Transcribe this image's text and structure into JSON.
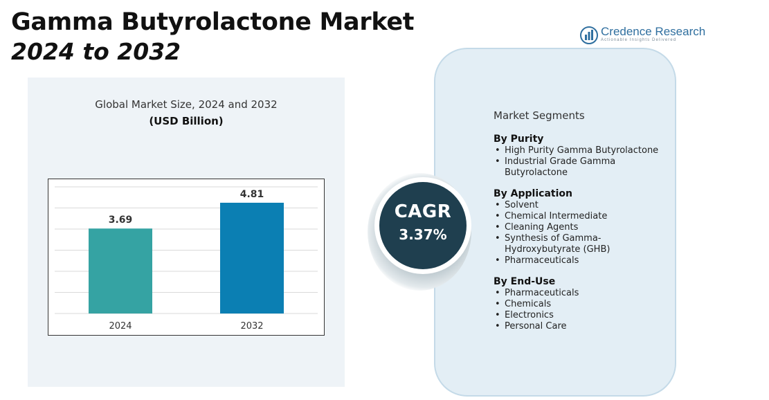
{
  "header": {
    "title": "Gamma Butyrolactone Market",
    "subtitle": "2024 to 2032"
  },
  "brand": {
    "name": "Credence Research",
    "tagline": "Actionable Insights Delivered",
    "color": "#2f6f9f"
  },
  "chart_data": {
    "type": "bar",
    "title": "Global Market Size, 2024 and 2032",
    "subtitle": "(USD Billion)",
    "categories": [
      "2024",
      "2032"
    ],
    "values": [
      3.69,
      4.81
    ],
    "data_labels": [
      "3.69",
      "4.81"
    ],
    "colors": [
      "#35a3a3",
      "#0b7fb3"
    ],
    "ylim": [
      0,
      5.5
    ],
    "grid": true,
    "legend": "none"
  },
  "cagr": {
    "label": "CAGR",
    "value": "3.37%"
  },
  "segments": {
    "title": "Market Segments",
    "groups": [
      {
        "heading": "By Purity",
        "items": [
          "High Purity Gamma Butyrolactone",
          "Industrial Grade Gamma Butyrolactone"
        ]
      },
      {
        "heading": "By Application",
        "items": [
          "Solvent",
          "Chemical Intermediate",
          "Cleaning Agents",
          "Synthesis of Gamma-Hydroxybutyrate (GHB)",
          "Pharmaceuticals"
        ]
      },
      {
        "heading": "By End-Use",
        "items": [
          "Pharmaceuticals",
          "Chemicals",
          "Electronics",
          "Personal Care"
        ]
      }
    ]
  }
}
